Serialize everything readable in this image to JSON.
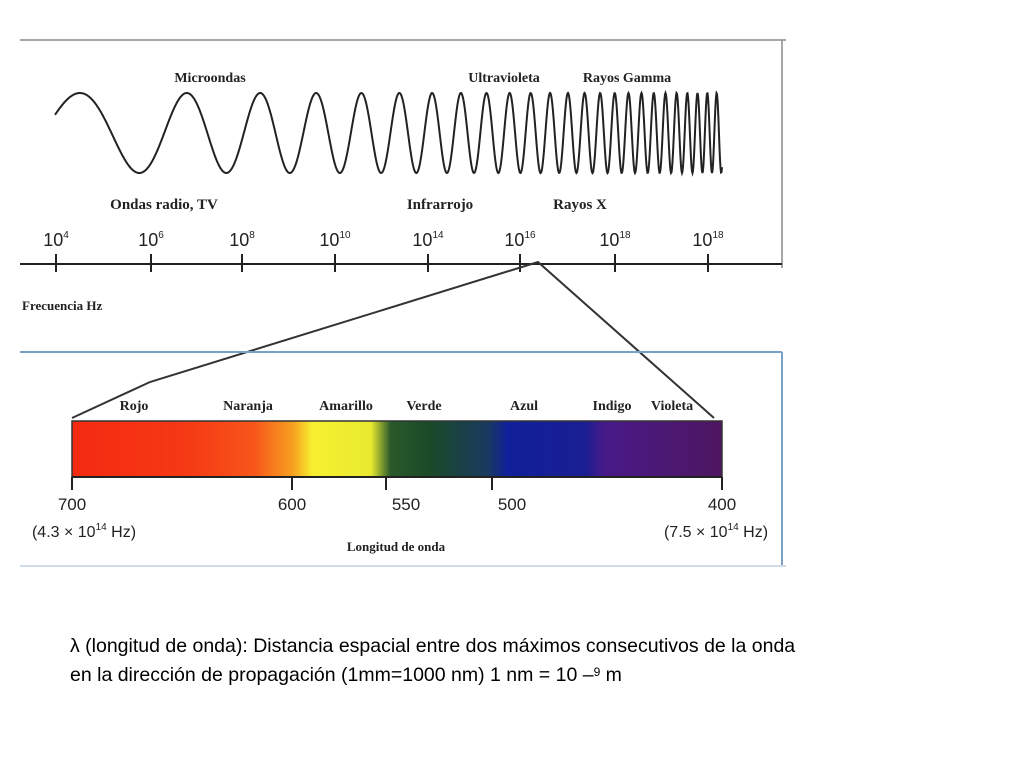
{
  "top_panel": {
    "labels_above": [
      {
        "text": "Microondas"
      },
      {
        "text": "Ultravioleta"
      },
      {
        "text": "Rayos Gamma"
      }
    ],
    "labels_below": [
      {
        "text": "Ondas radio, TV"
      },
      {
        "text": "Infrarrojo"
      },
      {
        "text": "Rayos X"
      }
    ],
    "frequency_ticks": [
      {
        "base": "10",
        "exp": "4"
      },
      {
        "base": "10",
        "exp": "6"
      },
      {
        "base": "10",
        "exp": "8"
      },
      {
        "base": "10",
        "exp": "10"
      },
      {
        "base": "10",
        "exp": "14"
      },
      {
        "base": "10",
        "exp": "16"
      },
      {
        "base": "10",
        "exp": "18"
      },
      {
        "base": "10",
        "exp": "18"
      }
    ],
    "axis_label": "Frecuencia Hz"
  },
  "visible_spectrum": {
    "colors": [
      {
        "name": "Rojo",
        "color": "#f42a12"
      },
      {
        "name": "Naranja",
        "color": "#f7561a"
      },
      {
        "name": "Amarillo",
        "color": "#f7f030"
      },
      {
        "name": "Verde",
        "color": "#1a4a28"
      },
      {
        "name": "Azul",
        "color": "#10209a"
      },
      {
        "name": "Indigo",
        "color": "#481a88"
      },
      {
        "name": "Violeta",
        "color": "#4e1660"
      }
    ],
    "wavelength_ticks": [
      {
        "value": "700",
        "sub": "(4.3 × 10",
        "sub_exp": "14",
        "sub_tail": " Hz)"
      },
      {
        "value": "600"
      },
      {
        "value": "550"
      },
      {
        "value": "500"
      },
      {
        "value": "400",
        "sub": "(7.5 × 10",
        "sub_exp": "14",
        "sub_tail": " Hz)"
      }
    ],
    "axis_label": "Longitud de onda"
  },
  "caption": {
    "line1": "λ (longitud de onda): Distancia espacial entre dos máximos consecutivos de la onda",
    "line2_pre": "en la dirección de propagación (1mm=1000 nm) 1 nm = 10 –",
    "line2_exp": "9",
    "line2_post": " m"
  }
}
